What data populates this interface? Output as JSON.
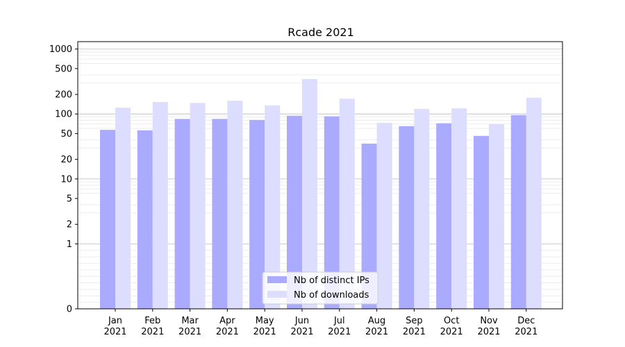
{
  "chart_data": {
    "type": "bar",
    "title": "Rcade 2021",
    "xlabel": "",
    "ylabel": "",
    "y_scale": "symlog",
    "ylim": [
      0,
      1300
    ],
    "y_ticks": [
      0,
      1,
      2,
      5,
      10,
      20,
      50,
      100,
      200,
      500,
      1000
    ],
    "y_tick_labels": [
      "0",
      "1",
      "2",
      "5",
      "10",
      "20",
      "50",
      "100",
      "200",
      "500",
      "1000"
    ],
    "categories": [
      [
        "Jan",
        "2021"
      ],
      [
        "Feb",
        "2021"
      ],
      [
        "Mar",
        "2021"
      ],
      [
        "Apr",
        "2021"
      ],
      [
        "May",
        "2021"
      ],
      [
        "Jun",
        "2021"
      ],
      [
        "Jul",
        "2021"
      ],
      [
        "Aug",
        "2021"
      ],
      [
        "Sep",
        "2021"
      ],
      [
        "Oct",
        "2021"
      ],
      [
        "Nov",
        "2021"
      ],
      [
        "Dec",
        "2021"
      ]
    ],
    "series": [
      {
        "name": "Nb of distinct IPs",
        "color": "#aaaaff",
        "values": [
          57,
          56,
          84,
          84,
          81,
          94,
          92,
          35,
          65,
          72,
          46,
          96
        ]
      },
      {
        "name": "Nb of downloads",
        "color": "#ddddff",
        "values": [
          125,
          153,
          148,
          160,
          135,
          345,
          172,
          73,
          120,
          122,
          70,
          178
        ]
      }
    ],
    "grid": true,
    "legend_position": "bottom-center"
  }
}
